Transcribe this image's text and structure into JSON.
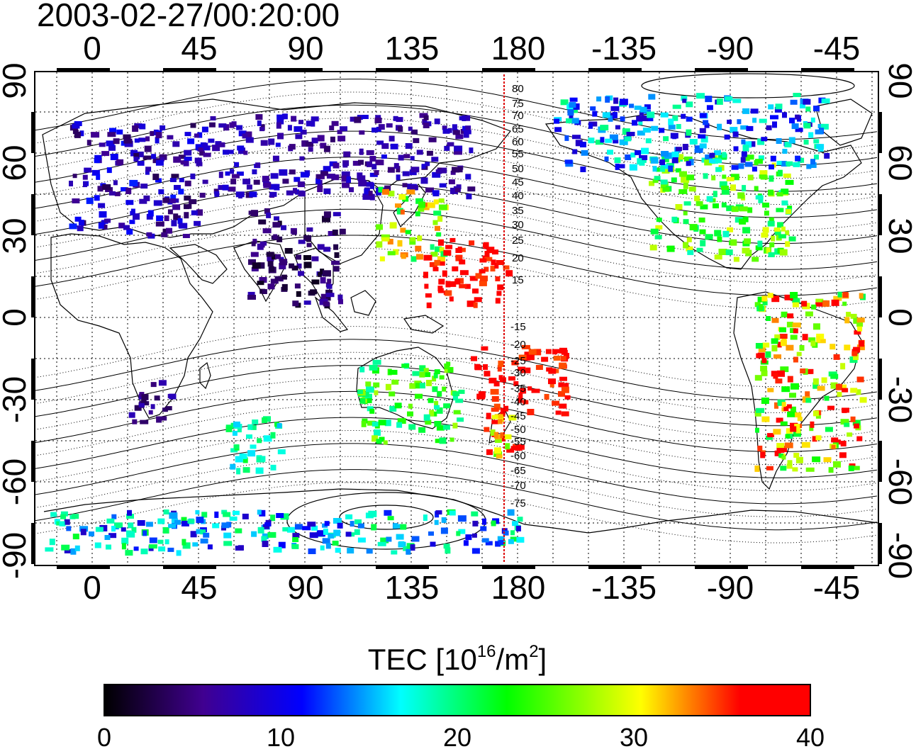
{
  "timestamp": "2003-02-27/00:20:00",
  "top_lon_labels": [
    "0",
    "45",
    "90",
    "135",
    "180",
    "-135",
    "-90",
    "-45"
  ],
  "bottom_lon_labels": [
    "0",
    "45",
    "90",
    "135",
    "180",
    "-135",
    "-90",
    "-45"
  ],
  "lat_labels": [
    "90",
    "60",
    "30",
    "0",
    "-30",
    "-60",
    "-90"
  ],
  "north_mlat_labels": [
    "80",
    "75",
    "70",
    "65",
    "60",
    "55",
    "50",
    "45",
    "40",
    "35",
    "30",
    "25",
    "20",
    "15"
  ],
  "south_mlat_labels": [
    "-15",
    "-20",
    "-25",
    "-30",
    "-35",
    "-40",
    "-45",
    "-50",
    "-55",
    "-60",
    "-65",
    "-70",
    "-75"
  ],
  "colorbar": {
    "title_main": "TEC  [10",
    "title_sup1": "16",
    "title_mid": "/m",
    "title_sup2": "2",
    "title_end": "]",
    "ticks": [
      "0",
      "10",
      "20",
      "30",
      "40"
    ],
    "min": 0,
    "max": 40,
    "colors": [
      "#000000",
      "#400090",
      "#0000ff",
      "#00ffff",
      "#00ff00",
      "#ffff00",
      "#ff0000"
    ]
  },
  "colors": {
    "meridian_line": "#dd0000",
    "coast": "#000000"
  },
  "tec_regions": [
    {
      "name": "europe",
      "lon": [
        -10,
        45
      ],
      "lat": [
        30,
        72
      ],
      "tec": [
        3,
        12
      ]
    },
    {
      "name": "north-asia",
      "lon": [
        45,
        160
      ],
      "lat": [
        45,
        75
      ],
      "tec": [
        4,
        10
      ]
    },
    {
      "name": "japan",
      "lon": [
        120,
        148
      ],
      "lat": [
        22,
        48
      ],
      "tec": [
        20,
        34
      ]
    },
    {
      "name": "north-america",
      "lon": [
        -125,
        -65
      ],
      "lat": [
        22,
        60
      ],
      "tec": [
        18,
        30
      ]
    },
    {
      "name": "canada-arctic",
      "lon": [
        -165,
        -50
      ],
      "lat": [
        55,
        82
      ],
      "tec": [
        8,
        20
      ]
    },
    {
      "name": "pacific-north",
      "lon": [
        140,
        175
      ],
      "lat": [
        5,
        30
      ],
      "tec": [
        34,
        40
      ]
    },
    {
      "name": "pacific-south",
      "lon": [
        160,
        -160
      ],
      "lat": [
        -35,
        -10
      ],
      "tec": [
        34,
        40
      ]
    },
    {
      "name": "australia",
      "lon": [
        112,
        155
      ],
      "lat": [
        -45,
        -15
      ],
      "tec": [
        18,
        28
      ]
    },
    {
      "name": "nz",
      "lon": [
        165,
        180
      ],
      "lat": [
        -50,
        -35
      ],
      "tec": [
        25,
        40
      ]
    },
    {
      "name": "south-america",
      "lon": [
        -80,
        -35
      ],
      "lat": [
        -55,
        10
      ],
      "tec": [
        20,
        40
      ]
    },
    {
      "name": "south-africa",
      "lon": [
        15,
        35
      ],
      "lat": [
        -38,
        -22
      ],
      "tec": [
        3,
        8
      ]
    },
    {
      "name": "india",
      "lon": [
        65,
        105
      ],
      "lat": [
        5,
        40
      ],
      "tec": [
        1,
        8
      ]
    },
    {
      "name": "southern-ocean",
      "lon": [
        55,
        80
      ],
      "lat": [
        -55,
        -35
      ],
      "tec": [
        15,
        22
      ]
    },
    {
      "name": "antarctic",
      "lon": [
        -20,
        180
      ],
      "lat": [
        -85,
        -70
      ],
      "tec": [
        8,
        22
      ]
    }
  ]
}
